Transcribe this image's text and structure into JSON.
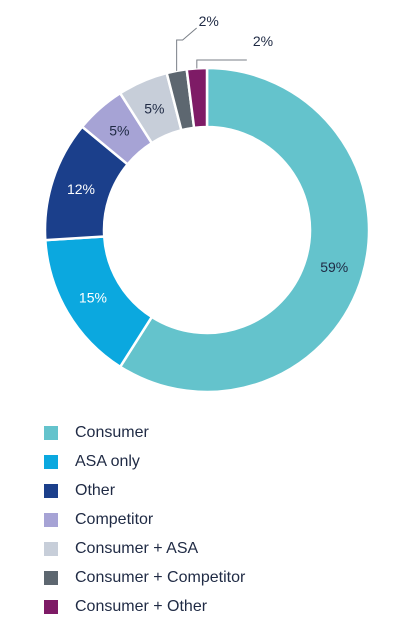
{
  "chart_data": {
    "type": "pie",
    "donut": true,
    "categories": [
      "Consumer",
      "ASA only",
      "Other",
      "Competitor",
      "Consumer + ASA",
      "Consumer + Competitor",
      "Consumer + Other"
    ],
    "values": [
      59,
      15,
      12,
      5,
      5,
      2,
      2
    ],
    "labels": [
      "59%",
      "15%",
      "12%",
      "5%",
      "5%",
      "2%",
      "2%"
    ],
    "colors": [
      "#64c3cc",
      "#0ba8df",
      "#1b3f8b",
      "#a6a3d5",
      "#c7ced9",
      "#5d6770",
      "#7e1b66"
    ],
    "label_colors": [
      "#1f2a44",
      "#ffffff",
      "#ffffff",
      "#1f2a44",
      "#1f2a44",
      "#1f2a44",
      "#1f2a44"
    ],
    "start": "top, clockwise",
    "legend_position": "bottom"
  }
}
